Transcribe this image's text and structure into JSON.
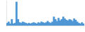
{
  "chart_data": {
    "type": "bar",
    "categories": [
      null,
      null,
      null,
      null,
      null,
      null,
      null,
      null,
      null,
      null,
      null,
      null,
      null,
      null,
      null,
      null,
      null,
      null,
      null,
      null,
      null,
      null,
      null,
      null,
      null,
      null,
      null,
      null,
      null,
      null,
      null,
      null,
      null,
      null,
      null,
      null,
      null,
      null,
      null,
      null,
      null,
      null,
      null,
      null,
      null,
      null,
      null,
      null,
      null,
      null
    ],
    "values": [
      4,
      6,
      3,
      10,
      3,
      4,
      38,
      10,
      5,
      4,
      6,
      5,
      4,
      3,
      4,
      3,
      4,
      5,
      4,
      3,
      5,
      4,
      6,
      5,
      4,
      5,
      7,
      5,
      4,
      6,
      14,
      10,
      7,
      12,
      8,
      10,
      14,
      11,
      9,
      8,
      10,
      9,
      7,
      11,
      9,
      6,
      4,
      3,
      5,
      3
    ],
    "color": "#4f97d4",
    "ylim": [
      0,
      40
    ],
    "grid": false,
    "tick_labels": false
  }
}
